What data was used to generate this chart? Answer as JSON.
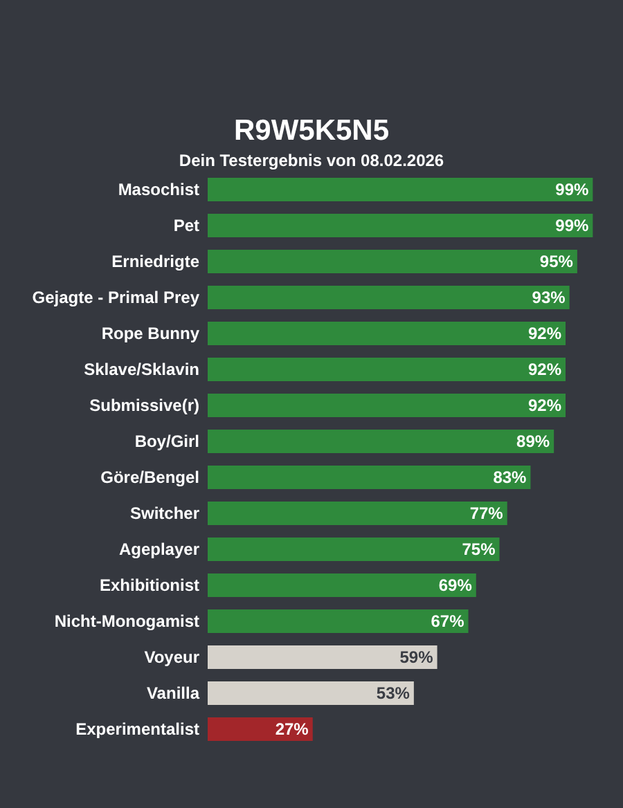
{
  "chart_data": {
    "type": "bar",
    "orientation": "horizontal",
    "title": "R9W5K5N5",
    "subtitle": "Dein Testergebnis von 08.02.2026",
    "categories": [
      "Masochist",
      "Pet",
      "Erniedrigte",
      "Gejagte - Primal Prey",
      "Rope Bunny",
      "Sklave/Sklavin",
      "Submissive(r)",
      "Boy/Girl",
      "Göre/Bengel",
      "Switcher",
      "Ageplayer",
      "Exhibitionist",
      "Nicht-Monogamist",
      "Voyeur",
      "Vanilla",
      "Experimentalist"
    ],
    "values": [
      99,
      99,
      95,
      93,
      92,
      92,
      92,
      89,
      83,
      77,
      75,
      69,
      67,
      59,
      53,
      27
    ],
    "colors": [
      "#2f8a3c",
      "#2f8a3c",
      "#2f8a3c",
      "#2f8a3c",
      "#2f8a3c",
      "#2f8a3c",
      "#2f8a3c",
      "#2f8a3c",
      "#2f8a3c",
      "#2f8a3c",
      "#2f8a3c",
      "#2f8a3c",
      "#2f8a3c",
      "#d6d2cb",
      "#d6d2cb",
      "#a3262a"
    ],
    "value_labels": [
      "99%",
      "99%",
      "95%",
      "93%",
      "92%",
      "92%",
      "92%",
      "89%",
      "83%",
      "77%",
      "75%",
      "69%",
      "67%",
      "59%",
      "53%",
      "27%"
    ],
    "tick_labels": "y"
  }
}
